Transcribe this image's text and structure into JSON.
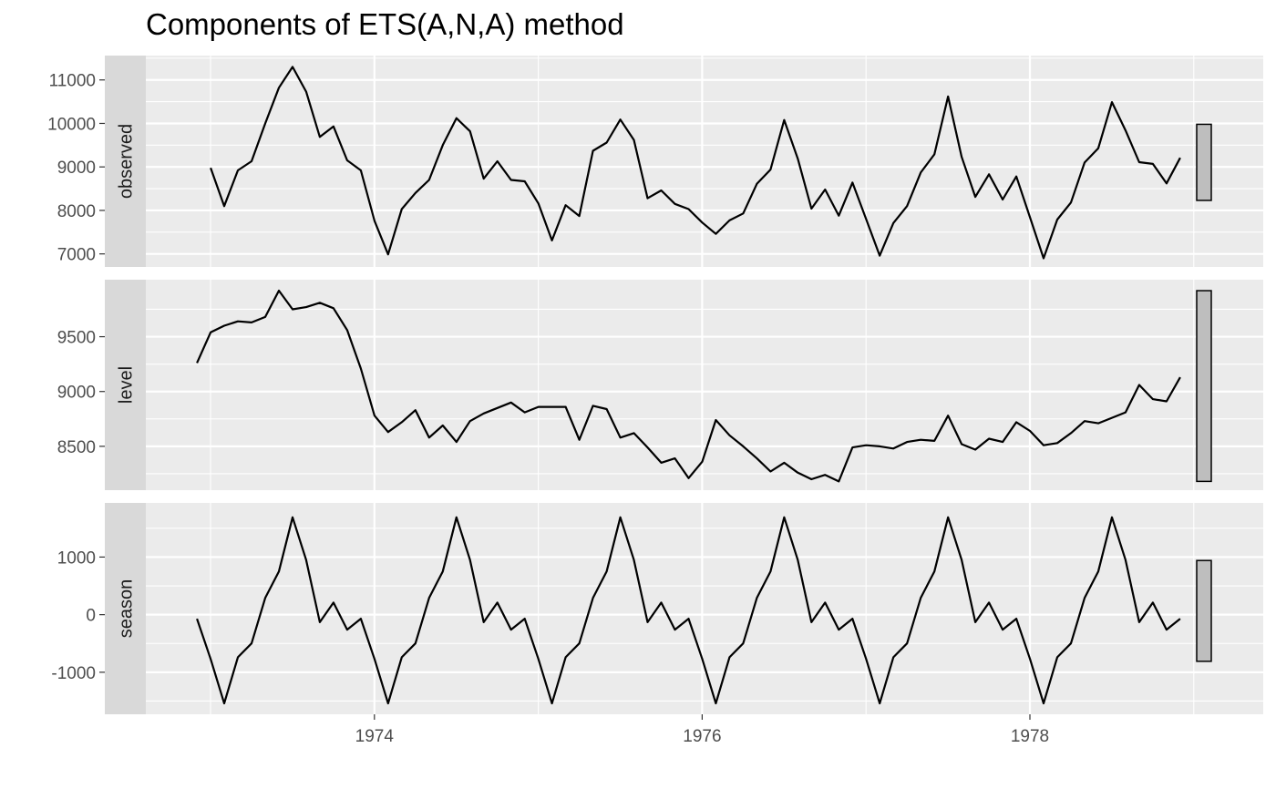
{
  "chart_data": {
    "type": "line",
    "title": "Components of ETS(A,N,A) method",
    "xlabel": "",
    "ylabel": "",
    "x_start": 1972.917,
    "x_step": 0.08333333,
    "x_ticks": [
      1974,
      1976,
      1978
    ],
    "x_tick_labels": [
      "1974",
      "1976",
      "1978"
    ],
    "grid": true,
    "facets": [
      {
        "name": "observed",
        "ylim": [
          6700,
          11560
        ],
        "y_ticks": [
          7000,
          8000,
          9000,
          10000,
          11000
        ],
        "y_tick_labels": [
          "7000",
          "8000",
          "9000",
          "10000",
          "11000"
        ],
        "scale_bar": [
          8230,
          9980
        ],
        "values": [
          null,
          8980,
          8100,
          8920,
          9130,
          10000,
          10820,
          11300,
          10730,
          9690,
          9930,
          9150,
          8920,
          7760,
          6990,
          8030,
          8400,
          8700,
          9500,
          10120,
          9820,
          8730,
          9130,
          8700,
          8670,
          8160,
          7310,
          8120,
          7870,
          9370,
          9560,
          10090,
          9620,
          8280,
          8460,
          8150,
          8030,
          7720,
          7460,
          7770,
          7930,
          8610,
          8940,
          10080,
          9190,
          8040,
          8480,
          7880,
          8640,
          7800,
          6960,
          7710,
          8100,
          8870,
          9290,
          10620,
          9230,
          8310,
          8830,
          8250,
          8780,
          7840,
          6900,
          7790,
          8180,
          9100,
          9430,
          10490,
          9840,
          9110,
          9070,
          8620,
          9210
        ]
      },
      {
        "name": "level",
        "ylim": [
          8100,
          10020
        ],
        "y_ticks": [
          8500,
          9000,
          9500
        ],
        "y_tick_labels": [
          "8500",
          "9000",
          "9500"
        ],
        "scale_bar": [
          8180,
          9920
        ],
        "values": [
          9260,
          9540,
          9600,
          9640,
          9630,
          9680,
          9920,
          9750,
          9770,
          9810,
          9760,
          9560,
          9210,
          8780,
          8630,
          8720,
          8830,
          8580,
          8690,
          8540,
          8730,
          8800,
          8850,
          8900,
          8810,
          8860,
          8860,
          8860,
          8560,
          8870,
          8840,
          8580,
          8620,
          8490,
          8350,
          8390,
          8210,
          8360,
          8740,
          8600,
          8500,
          8390,
          8270,
          8350,
          8260,
          8200,
          8240,
          8180,
          8490,
          8510,
          8500,
          8480,
          8540,
          8560,
          8550,
          8780,
          8520,
          8470,
          8570,
          8540,
          8720,
          8640,
          8510,
          8530,
          8620,
          8730,
          8710,
          8760,
          8810,
          9060,
          8930,
          8910,
          9130
        ]
      },
      {
        "name": "season",
        "ylim": [
          -1730,
          1940
        ],
        "y_ticks": [
          -1000,
          0,
          1000
        ],
        "y_tick_labels": [
          "-1000",
          "0",
          "1000"
        ],
        "scale_bar": [
          -810,
          940
        ],
        "values": [
          -70,
          -770,
          -1540,
          -740,
          -500,
          290,
          750,
          1690,
          950,
          -130,
          210,
          -260,
          -70,
          -770,
          -1540,
          -740,
          -500,
          290,
          750,
          1690,
          950,
          -130,
          210,
          -260,
          -70,
          -770,
          -1540,
          -740,
          -500,
          290,
          750,
          1690,
          950,
          -130,
          210,
          -260,
          -70,
          -770,
          -1540,
          -740,
          -500,
          290,
          750,
          1690,
          950,
          -130,
          210,
          -260,
          -70,
          -770,
          -1540,
          -740,
          -500,
          290,
          750,
          1690,
          950,
          -130,
          210,
          -260,
          -70,
          -770,
          -1540,
          -740,
          -500,
          290,
          750,
          1690,
          950,
          -130,
          210,
          -260,
          -70
        ]
      }
    ],
    "colors": {
      "panel_bg": "#ebebeb",
      "grid_major": "#ffffff",
      "strip_bg": "#d9d9d9",
      "line": "#000000",
      "scale_bar_fill": "#bebebe",
      "tick_text": "#4d4d4d",
      "axis_tick": "#333333"
    }
  }
}
